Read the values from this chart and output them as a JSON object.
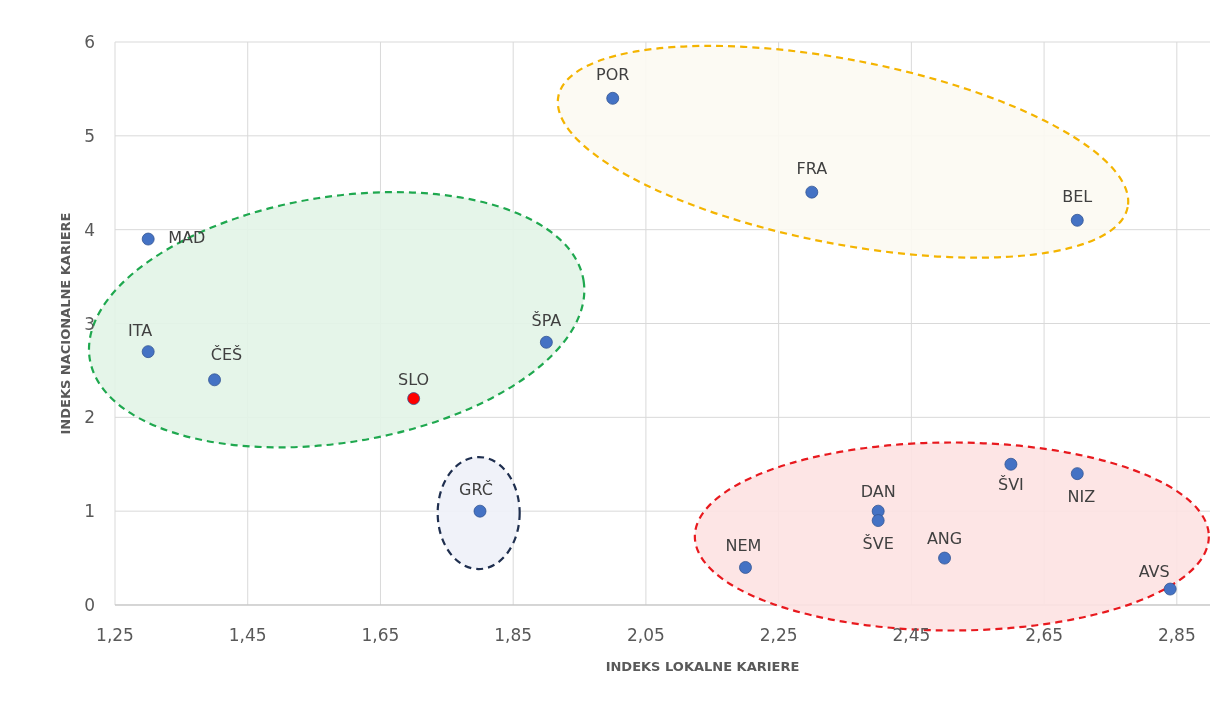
{
  "chart_data": {
    "type": "scatter",
    "xlabel": "INDEKS LOKALNE KARIERE",
    "ylabel": "INDEKS NACIONALNE KARIERE",
    "xlim": [
      1.25,
      2.9
    ],
    "ylim": [
      0,
      6
    ],
    "xticks": [
      {
        "value": 1.25,
        "label": "1,25"
      },
      {
        "value": 1.45,
        "label": "1,45"
      },
      {
        "value": 1.65,
        "label": "1,65"
      },
      {
        "value": 1.85,
        "label": "1,85"
      },
      {
        "value": 2.05,
        "label": "2,05"
      },
      {
        "value": 2.25,
        "label": "2,25"
      },
      {
        "value": 2.45,
        "label": "2,45"
      },
      {
        "value": 2.65,
        "label": "2,65"
      },
      {
        "value": 2.85,
        "label": "2,85"
      }
    ],
    "yticks": [
      0,
      1,
      2,
      3,
      4,
      5,
      6
    ],
    "grid": true,
    "marker": "circle",
    "series": [
      {
        "color": "#4472c4",
        "x": [
          1.3,
          1.3,
          1.4,
          1.7,
          1.9,
          1.8,
          2.0,
          2.3,
          2.7,
          2.2,
          2.4,
          2.4,
          2.5,
          2.6,
          2.7,
          2.84
        ],
        "values": [
          3.9,
          2.7,
          2.4,
          2.2,
          2.8,
          1.0,
          5.4,
          4.4,
          4.1,
          0.4,
          1.0,
          0.9,
          0.5,
          1.5,
          1.4,
          0.17
        ],
        "colors": [
          "#4472c4",
          "#4472c4",
          "#4472c4",
          "#ff0000",
          "#4472c4",
          "#4472c4",
          "#4472c4",
          "#4472c4",
          "#4472c4",
          "#4472c4",
          "#4472c4",
          "#4472c4",
          "#4472c4",
          "#4472c4",
          "#4472c4",
          "#4472c4"
        ]
      }
    ],
    "annotations": [
      {
        "text": "MAD",
        "x": 1.3,
        "y": 3.9
      },
      {
        "text": "ITA",
        "x": 1.3,
        "y": 2.7
      },
      {
        "text": "ČEŠ",
        "x": 1.4,
        "y": 2.4
      },
      {
        "text": "SLO",
        "x": 1.7,
        "y": 2.2
      },
      {
        "text": "ŠPA",
        "x": 1.9,
        "y": 2.8
      },
      {
        "text": "GRČ",
        "x": 1.8,
        "y": 1.0
      },
      {
        "text": "POR",
        "x": 2.0,
        "y": 5.4
      },
      {
        "text": "FRA",
        "x": 2.3,
        "y": 4.4
      },
      {
        "text": "BEL",
        "x": 2.7,
        "y": 4.1
      },
      {
        "text": "NEM",
        "x": 2.2,
        "y": 0.4
      },
      {
        "text": "DAN",
        "x": 2.4,
        "y": 1.0
      },
      {
        "text": "ŠVE",
        "x": 2.4,
        "y": 0.9
      },
      {
        "text": "ANG",
        "x": 2.5,
        "y": 0.5
      },
      {
        "text": "ŠVI",
        "x": 2.6,
        "y": 1.5
      },
      {
        "text": "NIZ",
        "x": 2.7,
        "y": 1.4
      },
      {
        "text": "AVS",
        "x": 2.84,
        "y": 0.17
      }
    ]
  }
}
